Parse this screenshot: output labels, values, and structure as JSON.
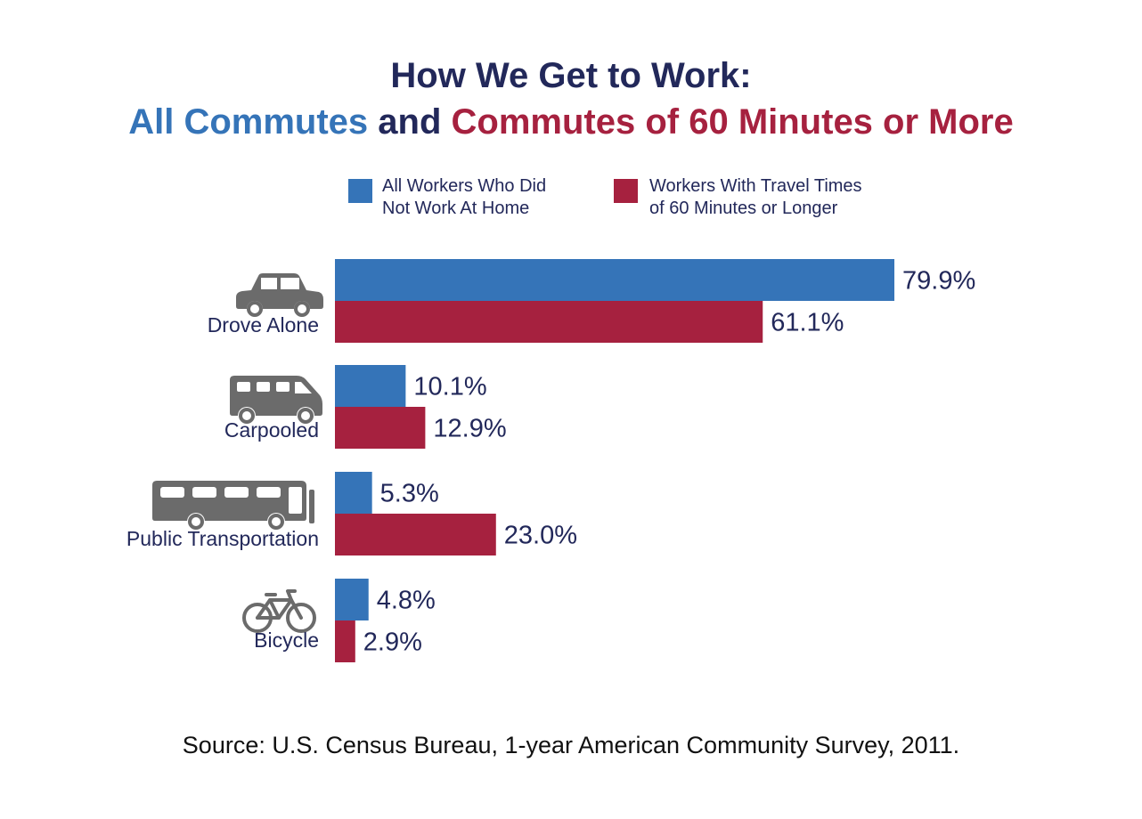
{
  "title": {
    "line1": "How We Get to Work:",
    "line2_part1": "All Commutes",
    "line2_part2": " and ",
    "line2_part3": "Commutes of 60 Minutes or More"
  },
  "colors": {
    "blue": "#3574b8",
    "red": "#a6213f",
    "navy": "#22285a",
    "icon": "#6b6b6b"
  },
  "legend": {
    "all": {
      "line1": "All Workers Who Did",
      "line2": "Not Work At Home"
    },
    "long": {
      "line1": "Workers With Travel Times",
      "line2": "of 60 Minutes or Longer"
    }
  },
  "chart_data": {
    "type": "bar",
    "orientation": "horizontal",
    "categories": [
      "Drove Alone",
      "Carpooled",
      "Public Transportation",
      "Bicycle"
    ],
    "icons": [
      "car-icon",
      "van-icon",
      "bus-icon",
      "bicycle-icon"
    ],
    "series": [
      {
        "name": "All Workers Who Did Not Work At Home",
        "values": [
          79.9,
          10.1,
          5.3,
          4.8
        ],
        "labels": [
          "79.9%",
          "10.1%",
          "5.3%",
          "4.8%"
        ]
      },
      {
        "name": "Workers With Travel Times of 60 Minutes or Longer",
        "values": [
          61.1,
          12.9,
          23.0,
          2.9
        ],
        "labels": [
          "61.1%",
          "12.9%",
          "23.0%",
          "2.9%"
        ]
      }
    ],
    "xlim": [
      0,
      100
    ],
    "grid": false,
    "legend_position": "top",
    "value_unit": "%"
  },
  "source": "Source: U.S. Census Bureau, 1-year American Community Survey, 2011."
}
